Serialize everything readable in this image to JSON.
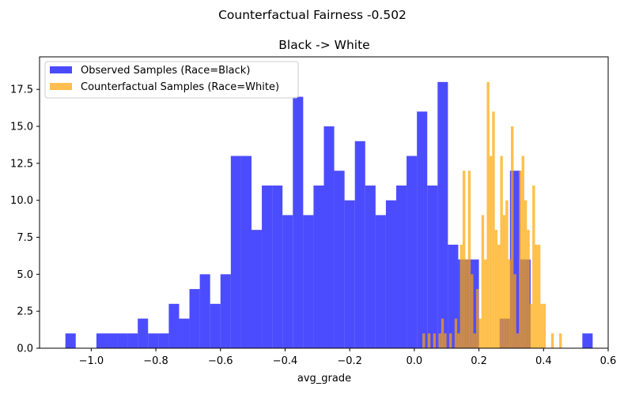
{
  "figure": {
    "suptitle": "Counterfactual Fairness -0.502",
    "title": "Black -> White",
    "xlabel": "avg_grade"
  },
  "legend": {
    "items": [
      {
        "label": "Observed Samples (Race=Black)",
        "color": "#4a4aff"
      },
      {
        "label": "Counterfactual Samples (Race=White)",
        "color": "#ffbe4d"
      }
    ]
  },
  "axes": {
    "xticks": [
      -1.0,
      -0.8,
      -0.6,
      -0.4,
      -0.2,
      0.0,
      0.2,
      0.4,
      0.6
    ],
    "xtick_labels": [
      "−1.0",
      "−0.8",
      "−0.6",
      "−0.4",
      "−0.2",
      "0.0",
      "0.2",
      "0.4",
      "0.6"
    ],
    "yticks": [
      0,
      2.5,
      5,
      7.5,
      10,
      12.5,
      15,
      17.5
    ],
    "ytick_labels": [
      "0.0",
      "2.5",
      "5.0",
      "7.5",
      "10.0",
      "12.5",
      "15.0",
      "17.5"
    ]
  },
  "chart_data": {
    "type": "histogram",
    "title": "Black -> White",
    "suptitle": "Counterfactual Fairness -0.502",
    "xlabel": "avg_grade",
    "ylabel": "",
    "xlim": [
      -1.16,
      0.6
    ],
    "ylim": [
      0,
      19.7
    ],
    "grid": false,
    "legend_position": "upper left",
    "series": [
      {
        "name": "Observed Samples (Race=Black)",
        "color": "#0000ff",
        "alpha": 0.7,
        "bin_start": -1.08,
        "bin_width": 0.032,
        "values": [
          1,
          0,
          0,
          1,
          1,
          1,
          1,
          2,
          1,
          1,
          3,
          2,
          4,
          5,
          3,
          5,
          13,
          13,
          8,
          11,
          11,
          9,
          17,
          9,
          11,
          15,
          12,
          10,
          14,
          11,
          9,
          10,
          11,
          13,
          16,
          11,
          18,
          7,
          6,
          6,
          0,
          0,
          2,
          12,
          6,
          0,
          0,
          0,
          0,
          0,
          1
        ]
      },
      {
        "name": "Counterfactual Samples (Race=White)",
        "color": "#ffa500",
        "alpha": 0.7,
        "bin_start": 0.025,
        "bin_width": 0.0083,
        "values": [
          1,
          0,
          1,
          0,
          1,
          0,
          1,
          2,
          1,
          0,
          1,
          0,
          2,
          1,
          7,
          12,
          6,
          12,
          5,
          1,
          4,
          2,
          9,
          6,
          18,
          13,
          16,
          8,
          7,
          13,
          9,
          10,
          6,
          15,
          5,
          1,
          12,
          13,
          10,
          8,
          3,
          11,
          7,
          7,
          3,
          3,
          0,
          0,
          1,
          0,
          0,
          1
        ]
      }
    ]
  }
}
